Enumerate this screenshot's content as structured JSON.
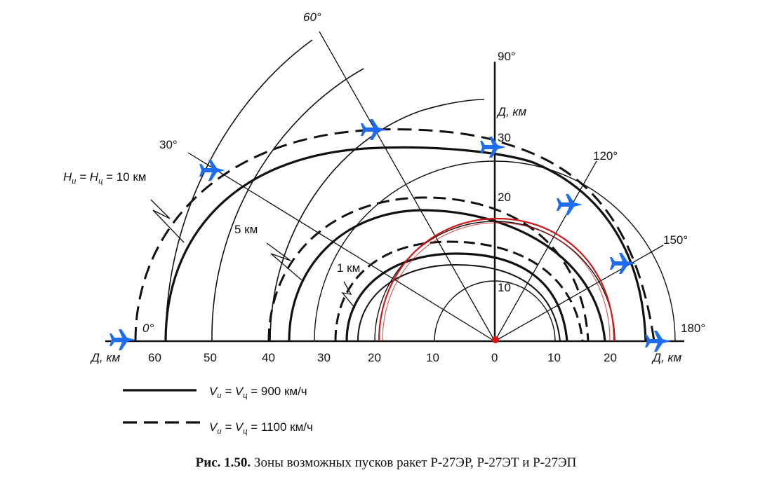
{
  "title": "Рис. 1.50. Зоны возможных пусков ракет Р-27ЭР, Р-27ЭТ и Р-27ЭП",
  "caption_prefix": "Рис. 1.50.",
  "caption_text": "Зоны возможных пусков ракет Р-27ЭР, Р-27ЭТ и Р-27ЭП",
  "axis": {
    "x_label_left": "Д, км",
    "x_label_right": "Д, км",
    "y_label": "Д, км",
    "x_ticks_left": [
      "60",
      "50",
      "40",
      "30",
      "20",
      "10",
      "0"
    ],
    "x_ticks_right": [
      "10",
      "20"
    ],
    "y_ticks": [
      "10",
      "20",
      "30"
    ]
  },
  "angles": {
    "a0": "0°",
    "a30": "30°",
    "a60": "60°",
    "a90": "90°",
    "a120": "120°",
    "a150": "150°",
    "a180": "180°"
  },
  "altitude_labels": {
    "h10_left": "H",
    "h10_sub1": "и",
    "h10_mid": " = H",
    "h10_sub2": "ц",
    "h10_value": " = 10 км",
    "h5": "5 км",
    "h1": "1 км"
  },
  "legend": {
    "solid_prefix": "V",
    "solid_sub1": "и",
    "solid_mid": " = V",
    "solid_sub2": "ц",
    "solid_value": " = 900 км/ч",
    "dashed_prefix": "V",
    "dashed_sub1": "и",
    "dashed_mid": " = V",
    "dashed_sub2": "ц",
    "dashed_value": " = 1100 км/ч"
  },
  "colors": {
    "line": "#111111",
    "overlay_red": "#d01818",
    "aircraft": "#1e6cf0",
    "origin": "#e01010"
  },
  "icons": [
    "jet-icon"
  ]
}
